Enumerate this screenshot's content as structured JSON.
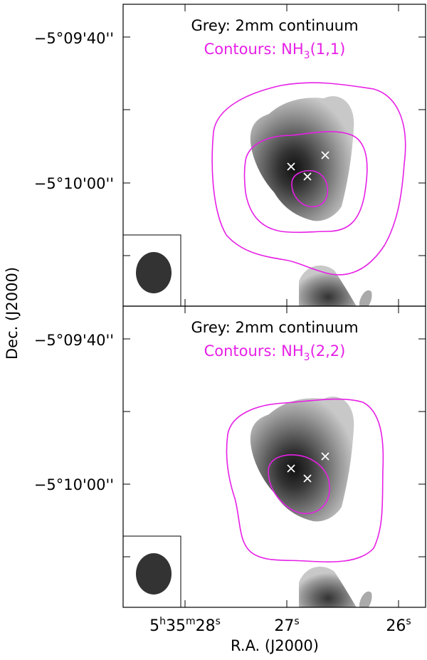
{
  "chart_data": [
    {
      "type": "contour",
      "panel": "top",
      "title_lines": [
        "Grey: 2mm continuum",
        "Contours: NH3(1,1)"
      ],
      "title_line1": "Grey: 2mm continuum",
      "title_line2_prefix": "Contours: NH",
      "title_line2_sub": "3",
      "title_line2_suffix": "(1,1)",
      "ytick_labels": [
        "−5°09'40''",
        "−5°10'00''"
      ],
      "greyscale": "2mm continuum",
      "contour_color": "#e620e6",
      "contour_line": "NH3(1,1)",
      "cross_markers": 3,
      "beam": "filled ellipse, lower-left corner"
    },
    {
      "type": "contour",
      "panel": "bottom",
      "title_lines": [
        "Grey: 2mm continuum",
        "Contours: NH3(2,2)"
      ],
      "title_line1": "Grey: 2mm continuum",
      "title_line2_prefix": "Contours: NH",
      "title_line2_sub": "3",
      "title_line2_suffix": "(2,2)",
      "ytick_labels": [
        "−5°09'40''",
        "−5°10'00''"
      ],
      "greyscale": "2mm continuum",
      "contour_color": "#e620e6",
      "contour_line": "NH3(2,2)",
      "cross_markers": 3,
      "beam": "filled ellipse, lower-left corner"
    }
  ],
  "axes": {
    "ylabel": "Dec. (J2000)",
    "xlabel": "R.A. (J2000)",
    "xtick_labels": [
      "5h35m28s",
      "27s",
      "26s"
    ],
    "xtick_first": {
      "hours": "5",
      "h": "h",
      "minutes": "35",
      "m": "m",
      "seconds": "28",
      "s": "s"
    },
    "xtick_27": {
      "value": "27",
      "s": "s"
    },
    "xtick_26": {
      "value": "26",
      "s": "s"
    }
  }
}
